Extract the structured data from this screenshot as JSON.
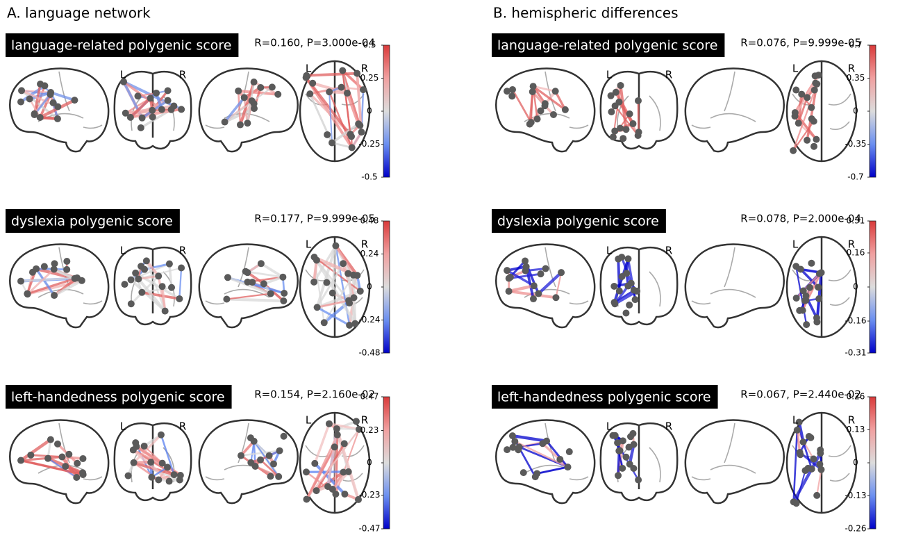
{
  "orientation": {
    "left": "L",
    "right": "R"
  },
  "columns": [
    {
      "title": "A. language network",
      "panels": [
        {
          "label": "language-related polygenic score",
          "stats": "R=0.160, P=3.000e-04",
          "colorbar": {
            "lim": [
              -0.5,
              0.5
            ],
            "ticks": [
              -0.5,
              -0.25,
              0,
              0.25,
              0.5
            ]
          }
        },
        {
          "label": "dyslexia polygenic score",
          "stats": "R=0.177, P=9.999e-05",
          "colorbar": {
            "lim": [
              -0.48,
              0.48
            ],
            "ticks": [
              -0.48,
              -0.24,
              0,
              0.24,
              0.48
            ]
          }
        },
        {
          "label": "left-handedness polygenic score",
          "stats": "R=0.154, P=2.160e-02",
          "colorbar": {
            "lim": [
              -0.47,
              0.47
            ],
            "ticks": [
              -0.47,
              -0.23,
              0,
              0.23,
              0.47
            ]
          }
        }
      ]
    },
    {
      "title": "B. hemispheric differences",
      "panels": [
        {
          "label": "language-related polygenic score",
          "stats": "R=0.076, P=9.999e-05",
          "colorbar": {
            "lim": [
              -0.7,
              0.7
            ],
            "ticks": [
              -0.7,
              -0.35,
              0,
              0.35,
              0.7
            ]
          }
        },
        {
          "label": "dyslexia polygenic score",
          "stats": "R=0.078, P=2.000e-04",
          "colorbar": {
            "lim": [
              -0.31,
              0.31
            ],
            "ticks": [
              -0.31,
              -0.16,
              0,
              0.16,
              0.31
            ]
          }
        },
        {
          "label": "left-handedness polygenic score",
          "stats": "R=0.067, P=2.440e-02",
          "colorbar": {
            "lim": [
              -0.26,
              0.26
            ],
            "ticks": [
              -0.26,
              -0.13,
              0,
              0.13,
              0.26
            ]
          }
        }
      ]
    }
  ]
}
